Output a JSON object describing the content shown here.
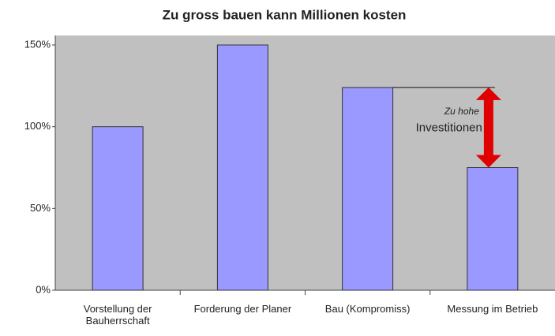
{
  "chart_data": {
    "type": "bar",
    "title": "Zu gross bauen kann Millionen kosten",
    "categories": [
      "Vorstellung der Bauherrschaft",
      "Forderung der Planer",
      "Bau (Kompromiss)",
      "Messung im Betrieb"
    ],
    "values": [
      100,
      150,
      124,
      75
    ],
    "color": "#9999ff",
    "ylim": [
      0,
      150
    ],
    "yticks": [
      {
        "value": 0,
        "label": "0%"
      },
      {
        "value": 50,
        "label": "50%"
      },
      {
        "value": 100,
        "label": "100%"
      },
      {
        "value": 150,
        "label": "150%"
      }
    ],
    "grid": false,
    "annotations": [
      "Zu hohe",
      "Investitionen"
    ]
  }
}
